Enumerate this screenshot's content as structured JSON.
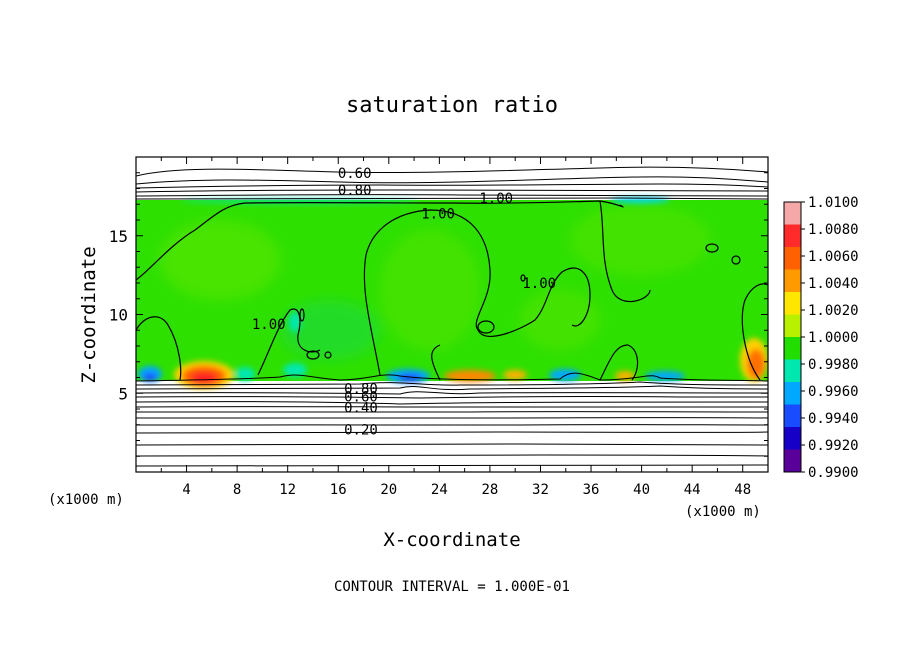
{
  "chart_data": {
    "type": "heatmap",
    "title": "saturation ratio",
    "xlabel": "X-coordinate",
    "ylabel": "Z-coordinate",
    "x_unit_label": "(x1000 m)",
    "y_unit_label": "(x1000 m)",
    "xlim": [
      0,
      50
    ],
    "ylim": [
      0,
      20
    ],
    "x_ticks": [
      4,
      8,
      12,
      16,
      20,
      24,
      28,
      32,
      36,
      40,
      44,
      48
    ],
    "y_ticks": [
      5,
      10,
      15
    ],
    "footer": "CONTOUR INTERVAL = 1.000E-01",
    "colorbar": {
      "min": 0.99,
      "max": 1.01,
      "labels": [
        "1.0100",
        "1.0080",
        "1.0060",
        "1.0040",
        "1.0020",
        "1.0000",
        "0.9980",
        "0.9960",
        "0.9940",
        "0.9920",
        "0.9900"
      ],
      "colors": [
        "#f4a8a8",
        "#ff2a2a",
        "#ff6000",
        "#ff9a00",
        "#ffe600",
        "#b8f000",
        "#22dd00",
        "#00e8b0",
        "#00a8ff",
        "#1a4cff",
        "#1600c8",
        "#5a009a"
      ]
    },
    "contour_labels": [
      {
        "text": "0.60",
        "x": 17.3,
        "z": 19.0
      },
      {
        "text": "0.80",
        "x": 17.3,
        "z": 17.9
      },
      {
        "text": "1.00",
        "x": 28.5,
        "z": 17.4
      },
      {
        "text": "1.00",
        "x": 23.9,
        "z": 16.4
      },
      {
        "text": "1.00",
        "x": 31.9,
        "z": 12.0
      },
      {
        "text": "1.00",
        "x": 10.5,
        "z": 9.4
      },
      {
        "text": "0.80",
        "x": 17.8,
        "z": 5.3
      },
      {
        "text": "0.60",
        "x": 17.8,
        "z": 4.8
      },
      {
        "text": "0.40",
        "x": 17.8,
        "z": 4.1
      },
      {
        "text": "0.20",
        "x": 17.8,
        "z": 2.7
      }
    ]
  }
}
